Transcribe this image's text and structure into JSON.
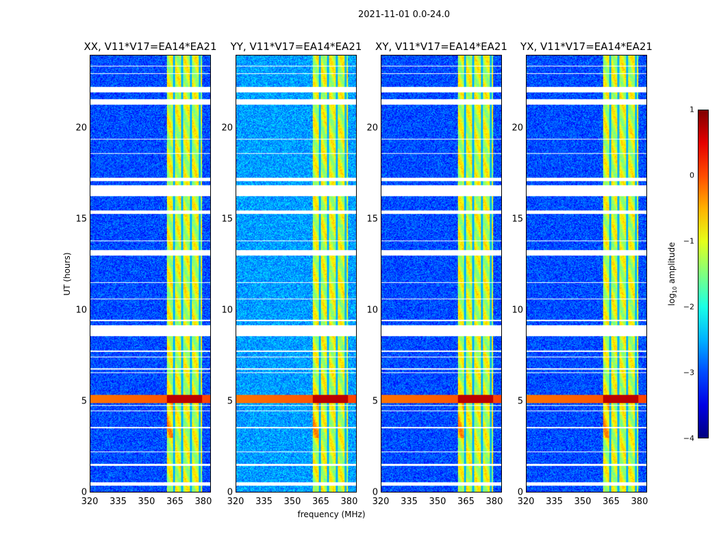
{
  "chart_data": {
    "type": "heatmap",
    "title": "2021-11-01 0.0-24.0",
    "xlabel": "frequency (MHz)",
    "ylabel": "UT (hours)",
    "xlim": [
      320,
      384
    ],
    "ylim": [
      0,
      24
    ],
    "xticks": [
      "320",
      "335",
      "350",
      "365",
      "380"
    ],
    "xtick_values": [
      320,
      335,
      350,
      365,
      380
    ],
    "yticks": [
      "0",
      "5",
      "10",
      "15",
      "20"
    ],
    "ytick_values": [
      0,
      5,
      10,
      15,
      20
    ],
    "colorbar": {
      "label_main": "log",
      "label_sub": "10",
      "label_rest": " amplitude",
      "range": [
        -4,
        1
      ],
      "ticks": [
        "1",
        "0",
        "−1",
        "−2",
        "−3",
        "−4"
      ],
      "tick_values": [
        1,
        0,
        -1,
        -2,
        -3,
        -4
      ],
      "colormap": "jet"
    },
    "panels": [
      {
        "title": "XX, V11*V17=EA14*EA21",
        "background_level": -3.0
      },
      {
        "title": "YY, V11*V17=EA14*EA21",
        "background_level": -2.6
      },
      {
        "title": "XY, V11*V17=EA14*EA21",
        "background_level": -3.0
      },
      {
        "title": "YX, V11*V17=EA14*EA21",
        "background_level": -3.0
      }
    ],
    "rfi_band_mhz": [
      360.5,
      379.5
    ],
    "rfi_band_level": -1.1,
    "rfi_gaps_mhz": [
      364.5,
      368.8,
      373.5,
      378.2
    ],
    "flare": {
      "ut_hours": [
        4.9,
        5.35
      ],
      "level": 0.7
    },
    "flagged_ut_hours": [
      [
        0.35,
        0.55
      ],
      [
        1.45,
        1.55
      ],
      [
        2.2,
        2.25
      ],
      [
        3.5,
        3.6
      ],
      [
        4.45,
        4.5
      ],
      [
        4.75,
        4.8
      ],
      [
        6.55,
        6.6
      ],
      [
        6.75,
        6.8
      ],
      [
        7.4,
        7.45
      ],
      [
        7.7,
        7.8
      ],
      [
        8.6,
        9.2
      ],
      [
        9.4,
        9.5
      ],
      [
        10.6,
        10.65
      ],
      [
        11.5,
        11.55
      ],
      [
        13.0,
        13.3
      ],
      [
        13.8,
        13.85
      ],
      [
        15.3,
        15.5
      ],
      [
        16.3,
        16.9
      ],
      [
        17.1,
        17.3
      ],
      [
        18.6,
        18.65
      ],
      [
        19.4,
        19.45
      ],
      [
        21.3,
        21.6
      ],
      [
        22.0,
        22.3
      ],
      [
        23.0,
        23.05
      ],
      [
        23.4,
        23.45
      ]
    ]
  }
}
